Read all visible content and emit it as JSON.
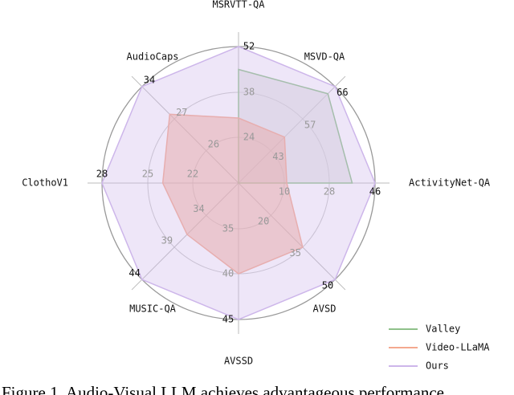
{
  "chart_data": {
    "type": "radar",
    "axes": [
      {
        "name": "MSRVTT-QA",
        "ticks": [
          24,
          38,
          52
        ]
      },
      {
        "name": "MSVD-QA",
        "ticks": [
          43,
          57,
          66
        ]
      },
      {
        "name": "ActivityNet-QA",
        "ticks": [
          10,
          28,
          46
        ]
      },
      {
        "name": "AVSD",
        "ticks": [
          20,
          35,
          50
        ]
      },
      {
        "name": "AVSSD",
        "ticks": [
          35,
          40,
          45
        ]
      },
      {
        "name": "MUSIC-QA",
        "ticks": [
          34,
          39,
          44
        ]
      },
      {
        "name": "ClothoV1",
        "ticks": [
          22,
          25,
          28
        ]
      },
      {
        "name": "AudioCaps",
        "ticks": [
          26,
          27,
          34
        ]
      }
    ],
    "series": [
      {
        "name": "Valley",
        "color": "#8fc18a",
        "values": [
          45,
          64,
          37,
          null,
          null,
          null,
          null,
          null
        ]
      },
      {
        "name": "Video-LLaMA",
        "color": "#f4a98f",
        "values": [
          30,
          49,
          11,
          35,
          40,
          37,
          24,
          28
        ]
      },
      {
        "name": "Ours",
        "color": "#cdb6ea",
        "values": [
          52,
          66,
          46,
          50,
          45,
          44,
          28,
          34
        ]
      }
    ],
    "legend": "lower right"
  },
  "caption": "Figure 1. Audio-Visual LLM achieves advantageous performance"
}
